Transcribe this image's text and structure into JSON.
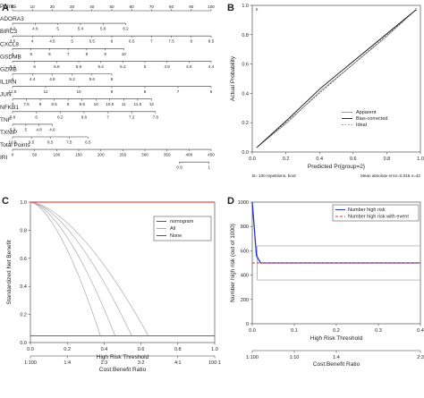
{
  "panels": {
    "A": {
      "letter": "A"
    },
    "B": {
      "letter": "B"
    },
    "C": {
      "letter": "C"
    },
    "D": {
      "letter": "D"
    }
  },
  "chart_data": [
    {
      "panel": "A",
      "type": "table",
      "rows": [
        {
          "label": "Points",
          "ticks": [
            "0",
            "10",
            "20",
            "30",
            "40",
            "50",
            "60",
            "70",
            "80",
            "90",
            "100"
          ],
          "from": 0,
          "to": 100
        },
        {
          "label": "ADORA3",
          "ticks": [
            "4.2",
            "4.6",
            "5",
            "5.4",
            "5.8",
            "6.2"
          ],
          "from": 0,
          "to": 57
        },
        {
          "label": "BIRC3",
          "ticks": [
            "3.5",
            "4",
            "4.5",
            "5",
            "5.5",
            "6",
            "6.5",
            "7",
            "7.5",
            "8",
            "8.5"
          ],
          "from": 0,
          "to": 100
        },
        {
          "label": "CXCL8",
          "ticks": [
            "4",
            "5",
            "6",
            "7",
            "8",
            "9",
            "10"
          ],
          "from": 0,
          "to": 56
        },
        {
          "label": "GSDMB",
          "ticks": [
            "6.2",
            "6",
            "5.8",
            "5.6",
            "5.4",
            "5.2",
            "5",
            "4.8",
            "4.6",
            "4.4"
          ],
          "from": 0,
          "to": 100
        },
        {
          "label": "GZMB",
          "ticks": [
            "4",
            "4.4",
            "4.8",
            "5.2",
            "5.6",
            "6"
          ],
          "from": 0,
          "to": 50
        },
        {
          "label": "IL1RN",
          "ticks": [
            "12.5",
            "11",
            "10",
            "9",
            "8",
            "7",
            "6"
          ],
          "from": 0,
          "to": 100
        },
        {
          "label": "JUN",
          "ticks": [
            "7",
            "7.5",
            "8",
            "8.5",
            "9",
            "9.5",
            "10",
            "10.5",
            "11",
            "11.5",
            "12"
          ],
          "from": 0,
          "to": 70
        },
        {
          "label": "NFKB1",
          "ticks": [
            "5.8",
            "6",
            "6.2",
            "6.6",
            "7",
            "7.2",
            "7.6"
          ],
          "from": 0,
          "to": 72
        },
        {
          "label": "TNF",
          "ticks": [
            "5.3",
            "5",
            "4.8",
            "4.6"
          ],
          "from": 0,
          "to": 20
        },
        {
          "label": "TXNIP",
          "ticks": [
            "10.5",
            "9.5",
            "8.5",
            "7.5",
            "6.5"
          ],
          "from": 0,
          "to": 38
        },
        {
          "label": "Total Points",
          "ticks": [
            "0",
            "50",
            "100",
            "150",
            "200",
            "250",
            "300",
            "350",
            "400",
            "450"
          ],
          "from": 0,
          "to": 100
        },
        {
          "label": "IRI",
          "ticks": [
            "0.9",
            "1"
          ],
          "from": 84,
          "to": 99
        }
      ]
    },
    {
      "panel": "B",
      "type": "line",
      "xlabel": "Predicted Pr{group=2}",
      "ylabel": "Actual Probability",
      "xlim": [
        0,
        1
      ],
      "ylim": [
        0,
        1
      ],
      "xticks": [
        "0.0",
        "0.2",
        "0.4",
        "0.6",
        "0.8",
        "1.0"
      ],
      "yticks": [
        "0.0",
        "0.2",
        "0.4",
        "0.6",
        "0.8",
        "1.0"
      ],
      "legend": [
        "Apparent",
        "Bias-corrected",
        "Ideal"
      ],
      "series": [
        {
          "name": "Apparent",
          "x": [
            0,
            0.2,
            0.4,
            0.6,
            0.8,
            1.0
          ],
          "y": [
            0,
            0.19,
            0.41,
            0.6,
            0.79,
            1.0
          ]
        },
        {
          "name": "Bias-corrected",
          "x": [
            0,
            0.2,
            0.4,
            0.6,
            0.8,
            1.0
          ],
          "y": [
            0,
            0.21,
            0.43,
            0.62,
            0.81,
            1.0
          ]
        },
        {
          "name": "Ideal",
          "x": [
            0,
            1
          ],
          "y": [
            0,
            1
          ]
        }
      ],
      "footnote_left": "B= 100 repetitions, boot",
      "footnote_right": "Mean absolute error=0.016 n=42",
      "top_markers": [
        "0",
        "1"
      ]
    },
    {
      "panel": "C",
      "type": "line",
      "xlabel": "High Risk Threshold",
      "ylabel": "Standardized Net Benefit",
      "xlim": [
        0,
        1
      ],
      "ylim": [
        -0.05,
        1
      ],
      "xticks": [
        "0.0",
        "0.2",
        "0.4",
        "0.6",
        "0.8",
        "1.0"
      ],
      "yticks": [
        "0.0",
        "0.2",
        "0.4",
        "0.6",
        "0.8",
        "1.0"
      ],
      "x2label": "Cost:Benefit Ratio",
      "x2ticks": [
        "1:100",
        "1:4",
        "2:3",
        "3:2",
        "4:1",
        "100:1"
      ],
      "legend": [
        "nomogram",
        "All",
        "None"
      ],
      "series": [
        {
          "name": "nomogram",
          "x": [
            0,
            1
          ],
          "y": [
            1,
            1
          ]
        },
        {
          "name": "None",
          "x": [
            0,
            1
          ],
          "y": [
            0,
            0
          ]
        },
        {
          "name": "All",
          "x": [
            0,
            0.1,
            0.2,
            0.3,
            0.4,
            0.5
          ],
          "y": [
            1,
            0.9,
            0.75,
            0.55,
            0.3,
            0
          ]
        }
      ]
    },
    {
      "panel": "D",
      "type": "line",
      "xlabel": "High Risk Threshold",
      "ylabel": "Number high risk (out of 1000)",
      "xlim": [
        0,
        0.4
      ],
      "ylim": [
        0,
        1000
      ],
      "xticks": [
        "0.0",
        "0.1",
        "0.2",
        "0.3",
        "0.4"
      ],
      "yticks": [
        "0",
        "200",
        "400",
        "600",
        "800",
        "1000"
      ],
      "x2label": "Cost:Benefit Ratio",
      "x2ticks": [
        "1:100",
        "1:10",
        "1:4",
        "2:3"
      ],
      "legend": [
        "Number high risk",
        "Number high risk with event"
      ],
      "series": [
        {
          "name": "Number high risk",
          "x": [
            0,
            0.01,
            0.02,
            0.4
          ],
          "y": [
            1000,
            560,
            500,
            500
          ]
        },
        {
          "name": "Number high risk with event",
          "x": [
            0,
            0.4
          ],
          "y": [
            500,
            500
          ]
        }
      ]
    }
  ]
}
